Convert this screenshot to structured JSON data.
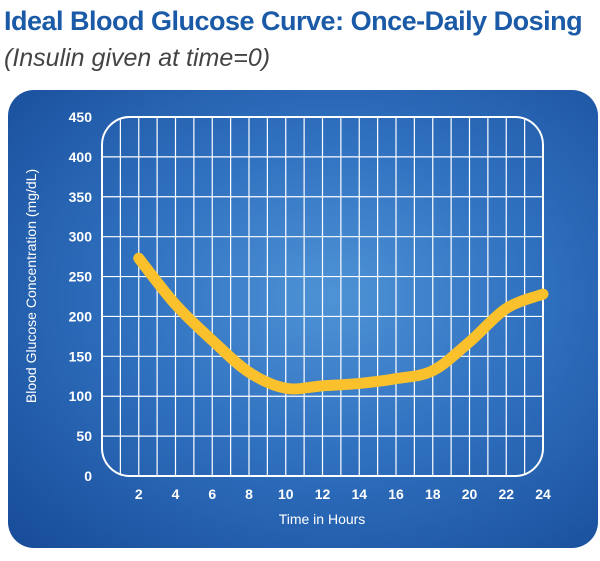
{
  "page": {
    "title": "Ideal Blood Glucose Curve: Once-Daily Dosing",
    "subtitle": "(Insulin given at time=0)"
  },
  "colors": {
    "curve": "#fbc12d",
    "grid": "#ffffff",
    "panel_dark": "#174b97",
    "panel_light": "#4f93d6",
    "title": "#1b5aa6"
  },
  "chart_data": {
    "type": "line",
    "title": "Ideal Blood Glucose Curve: Once-Daily Dosing",
    "subtitle": "(Insulin given at time=0)",
    "xlabel": "Time in Hours",
    "ylabel": "Blood Glucose Concentration (mg/dL)",
    "xlim": [
      0,
      24
    ],
    "ylim": [
      0,
      450
    ],
    "xticks": [
      2,
      4,
      6,
      8,
      10,
      12,
      14,
      16,
      18,
      20,
      22,
      24
    ],
    "yticks": [
      0,
      50,
      100,
      150,
      200,
      250,
      300,
      350,
      400,
      450
    ],
    "grid": true,
    "series": [
      {
        "x": [
          2,
          4,
          6,
          8,
          10,
          12,
          14,
          16,
          18,
          20,
          22,
          24
        ],
        "values": [
          273,
          215,
          170,
          130,
          110,
          113,
          116,
          122,
          132,
          168,
          210,
          228
        ]
      }
    ]
  }
}
